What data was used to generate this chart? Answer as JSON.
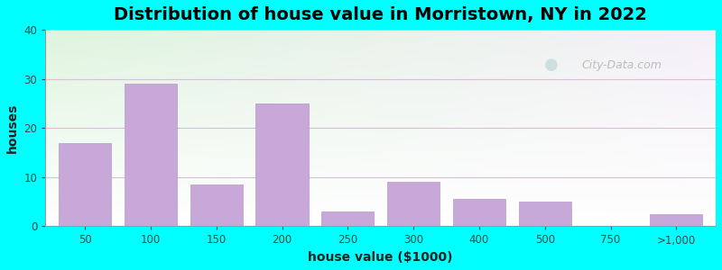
{
  "title": "Distribution of house value in Morristown, NY in 2022",
  "xlabel": "house value ($1000)",
  "ylabel": "houses",
  "bar_color": "#C8A8D8",
  "bar_edgecolor": "#B898C8",
  "background_outer": "#00FFFF",
  "ylim": [
    0,
    40
  ],
  "yticks": [
    0,
    10,
    20,
    30,
    40
  ],
  "categories": [
    "50",
    "100",
    "150",
    "200",
    "250",
    "300",
    "400",
    "500",
    "750",
    ">1,000"
  ],
  "values": [
    17,
    29,
    8.5,
    25,
    3,
    9,
    5.5,
    5,
    0,
    2.5
  ],
  "bar_positions": [
    0,
    1,
    2,
    3,
    4,
    5,
    6,
    7,
    8,
    9
  ],
  "title_fontsize": 14,
  "axis_label_fontsize": 10,
  "watermark_text": "City-Data.com",
  "watermark_color": "#AAAAAA",
  "xlim": [
    -0.6,
    9.6
  ]
}
